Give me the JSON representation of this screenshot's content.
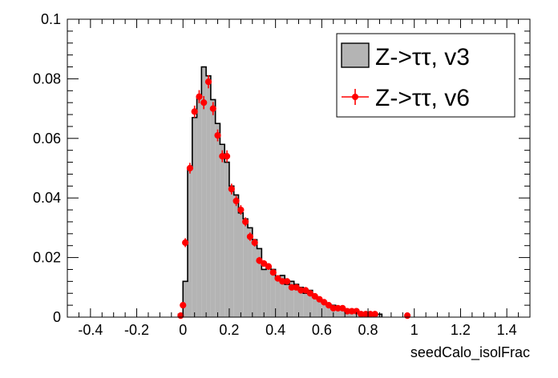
{
  "chart_data": {
    "type": "histogram",
    "xlabel": "seedCalo_isolFrac",
    "ylabel": "",
    "xlim": [
      -0.5,
      1.5
    ],
    "ylim": [
      0,
      0.1
    ],
    "x_ticks": [
      "-0.4",
      "-0.2",
      "0",
      "0.2",
      "0.4",
      "0.6",
      "0.8",
      "1",
      "1.2",
      "1.4"
    ],
    "x_tick_values": [
      -0.4,
      -0.2,
      0,
      0.2,
      0.4,
      0.6,
      0.8,
      1.0,
      1.2,
      1.4
    ],
    "y_ticks": [
      "0",
      "0.02",
      "0.04",
      "0.06",
      "0.08",
      "0.1"
    ],
    "y_tick_values": [
      0,
      0.02,
      0.04,
      0.06,
      0.08,
      0.1
    ],
    "grid": false,
    "legend_position": "top-right",
    "bin_width": 0.02,
    "series": [
      {
        "name": "Z->ττ, v3",
        "style": "filled-histogram",
        "fill_color": "#b4b4b4",
        "line_color": "#000000",
        "bins_lo": [
          -0.02,
          0.0,
          0.02,
          0.04,
          0.06,
          0.08,
          0.1,
          0.12,
          0.14,
          0.16,
          0.18,
          0.2,
          0.22,
          0.24,
          0.26,
          0.28,
          0.3,
          0.32,
          0.34,
          0.36,
          0.38,
          0.4,
          0.42,
          0.44,
          0.46,
          0.48,
          0.5,
          0.52,
          0.54,
          0.56,
          0.58,
          0.6,
          0.62,
          0.64,
          0.66,
          0.68,
          0.7,
          0.72,
          0.74,
          0.76,
          0.78,
          0.8,
          0.82,
          0.84
        ],
        "values": [
          0.001,
          0.012,
          0.05,
          0.067,
          0.074,
          0.084,
          0.081,
          0.073,
          0.065,
          0.058,
          0.052,
          0.044,
          0.041,
          0.035,
          0.033,
          0.03,
          0.026,
          0.023,
          0.016,
          0.017,
          0.016,
          0.013,
          0.014,
          0.011,
          0.012,
          0.011,
          0.01,
          0.008,
          0.009,
          0.007,
          0.006,
          0.005,
          0.004,
          0.004,
          0.003,
          0.003,
          0.002,
          0.002,
          0.002,
          0.001,
          0.001,
          0.001,
          0.001,
          0.001
        ]
      },
      {
        "name": "Z->ττ, v6",
        "style": "points-with-errors",
        "color": "#ff0000",
        "x": [
          -0.01,
          0.0,
          0.01,
          0.03,
          0.05,
          0.07,
          0.09,
          0.11,
          0.13,
          0.15,
          0.17,
          0.19,
          0.21,
          0.23,
          0.25,
          0.27,
          0.29,
          0.31,
          0.33,
          0.35,
          0.37,
          0.39,
          0.41,
          0.43,
          0.45,
          0.47,
          0.49,
          0.51,
          0.53,
          0.55,
          0.57,
          0.59,
          0.61,
          0.63,
          0.65,
          0.67,
          0.69,
          0.71,
          0.73,
          0.75,
          0.77,
          0.79,
          0.81,
          0.83,
          0.97
        ],
        "y": [
          0.0005,
          0.004,
          0.025,
          0.05,
          0.069,
          0.074,
          0.072,
          0.079,
          0.07,
          0.061,
          0.054,
          0.054,
          0.043,
          0.039,
          0.036,
          0.032,
          0.027,
          0.025,
          0.019,
          0.018,
          0.017,
          0.015,
          0.013,
          0.012,
          0.012,
          0.01,
          0.01,
          0.009,
          0.009,
          0.008,
          0.007,
          0.006,
          0.005,
          0.004,
          0.003,
          0.003,
          0.003,
          0.002,
          0.002,
          0.002,
          0.001,
          0.001,
          0.001,
          0.001,
          0.0005
        ],
        "yerr": [
          0.0003,
          0.001,
          0.0015,
          0.0018,
          0.002,
          0.0022,
          0.0022,
          0.0022,
          0.0022,
          0.002,
          0.002,
          0.002,
          0.0018,
          0.0017,
          0.0016,
          0.0015,
          0.0014,
          0.0013,
          0.0012,
          0.0011,
          0.0011,
          0.001,
          0.001,
          0.0009,
          0.0009,
          0.0009,
          0.0008,
          0.0008,
          0.0008,
          0.0007,
          0.0007,
          0.0006,
          0.0006,
          0.0005,
          0.0005,
          0.0005,
          0.0004,
          0.0004,
          0.0004,
          0.0003,
          0.0003,
          0.0003,
          0.0003,
          0.0003,
          0.0002
        ]
      }
    ]
  }
}
